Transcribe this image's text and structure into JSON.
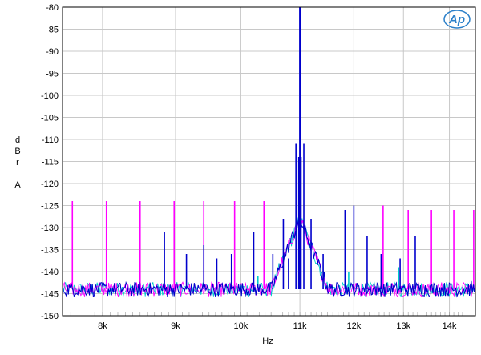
{
  "chart_data": {
    "type": "line",
    "title": "",
    "xlabel": "Hz",
    "ylabel_letters": [
      "d",
      "B",
      "r",
      "",
      "A"
    ],
    "xscale": "log",
    "xlim": [
      7500,
      14600
    ],
    "ylim": [
      -150,
      -80
    ],
    "grid": true,
    "x_ticks": [
      8000,
      9000,
      10000,
      11000,
      12000,
      13000,
      14000
    ],
    "x_tick_labels": [
      "8k",
      "9k",
      "10k",
      "11k",
      "12k",
      "13k",
      "14k"
    ],
    "y_ticks": [
      -80,
      -85,
      -90,
      -95,
      -100,
      -105,
      -110,
      -115,
      -120,
      -125,
      -130,
      -135,
      -140,
      -145,
      -150
    ],
    "y_tick_labels": [
      "-80",
      "-85",
      "-90",
      "-95",
      "-100",
      "-105",
      "-110",
      "-115",
      "-120",
      "-125",
      "-130",
      "-135",
      "-140",
      "-145",
      "-150"
    ],
    "noise_floor": -144,
    "series": [
      {
        "color": "#ff00ff",
        "spikes": [
          {
            "x": 7620,
            "y": -124
          },
          {
            "x": 8050,
            "y": -124
          },
          {
            "x": 8500,
            "y": -124
          },
          {
            "x": 8980,
            "y": -124
          },
          {
            "x": 9420,
            "y": -124
          },
          {
            "x": 9900,
            "y": -124
          },
          {
            "x": 10380,
            "y": -124
          },
          {
            "x": 12580,
            "y": -125
          },
          {
            "x": 13100,
            "y": -126
          },
          {
            "x": 13600,
            "y": -126
          },
          {
            "x": 14100,
            "y": -126
          },
          {
            "x": 14560,
            "y": -126
          }
        ]
      },
      {
        "color": "#0000cc",
        "spikes": [
          {
            "x": 8840,
            "y": -131
          },
          {
            "x": 9160,
            "y": -136
          },
          {
            "x": 9420,
            "y": -134
          },
          {
            "x": 9620,
            "y": -137
          },
          {
            "x": 9850,
            "y": -136
          },
          {
            "x": 10210,
            "y": -131
          },
          {
            "x": 10530,
            "y": -136
          },
          {
            "x": 10710,
            "y": -128
          },
          {
            "x": 10800,
            "y": -137
          },
          {
            "x": 10930,
            "y": -111
          },
          {
            "x": 10980,
            "y": -114
          },
          {
            "x": 11000,
            "y": -80
          },
          {
            "x": 11020,
            "y": -114
          },
          {
            "x": 11070,
            "y": -111
          },
          {
            "x": 11200,
            "y": -128
          },
          {
            "x": 11420,
            "y": -136
          },
          {
            "x": 11830,
            "y": -126
          },
          {
            "x": 12000,
            "y": -125
          },
          {
            "x": 12260,
            "y": -132
          },
          {
            "x": 12540,
            "y": -136
          },
          {
            "x": 12930,
            "y": -137
          },
          {
            "x": 13250,
            "y": -132
          }
        ]
      },
      {
        "color": "#00cccc",
        "spikes": [
          {
            "x": 10280,
            "y": -141
          },
          {
            "x": 11900,
            "y": -140
          },
          {
            "x": 12900,
            "y": -139
          }
        ]
      }
    ]
  },
  "logo": {
    "text": "Ap"
  }
}
